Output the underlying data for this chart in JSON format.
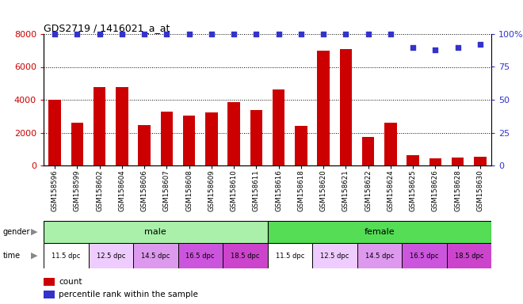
{
  "title": "GDS2719 / 1416021_a_at",
  "samples": [
    "GSM158596",
    "GSM158599",
    "GSM158602",
    "GSM158604",
    "GSM158606",
    "GSM158607",
    "GSM158608",
    "GSM158609",
    "GSM158610",
    "GSM158611",
    "GSM158616",
    "GSM158618",
    "GSM158620",
    "GSM158621",
    "GSM158622",
    "GSM158624",
    "GSM158625",
    "GSM158626",
    "GSM158628",
    "GSM158630"
  ],
  "counts": [
    4000,
    2600,
    4750,
    4750,
    2450,
    3300,
    3050,
    3250,
    3850,
    3350,
    4620,
    2420,
    6980,
    7100,
    1750,
    2580,
    620,
    420,
    470,
    520
  ],
  "percentile": [
    100,
    100,
    100,
    100,
    100,
    100,
    100,
    100,
    100,
    100,
    100,
    100,
    100,
    100,
    100,
    100,
    90,
    88,
    90,
    92
  ],
  "bar_color": "#cc0000",
  "dot_color": "#3333cc",
  "ylim_left": [
    0,
    8000
  ],
  "ylim_right": [
    0,
    100
  ],
  "yticks_left": [
    0,
    2000,
    4000,
    6000,
    8000
  ],
  "yticks_right": [
    0,
    25,
    50,
    75,
    100
  ],
  "ytick_labels_right": [
    "0",
    "25",
    "50",
    "75",
    "100%"
  ],
  "gender_labels": [
    "male",
    "female"
  ],
  "gender_male_count": 10,
  "gender_female_count": 10,
  "time_groups": [
    "11.5 dpc",
    "12.5 dpc",
    "14.5 dpc",
    "16.5 dpc",
    "18.5 dpc"
  ],
  "time_colors_male": [
    "#ffffff",
    "#eeccff",
    "#dd99ee",
    "#cc55dd",
    "#cc44cc"
  ],
  "time_colors_female": [
    "#ffffff",
    "#eeccff",
    "#dd99ee",
    "#cc55dd",
    "#cc44cc"
  ],
  "gender_color_male": "#aaf0aa",
  "gender_color_female": "#55dd55",
  "background_color": "#ffffff",
  "tick_label_color_left": "#cc0000",
  "tick_label_color_right": "#3333cc",
  "legend_count_label": "count",
  "legend_pct_label": "percentile rank within the sample"
}
